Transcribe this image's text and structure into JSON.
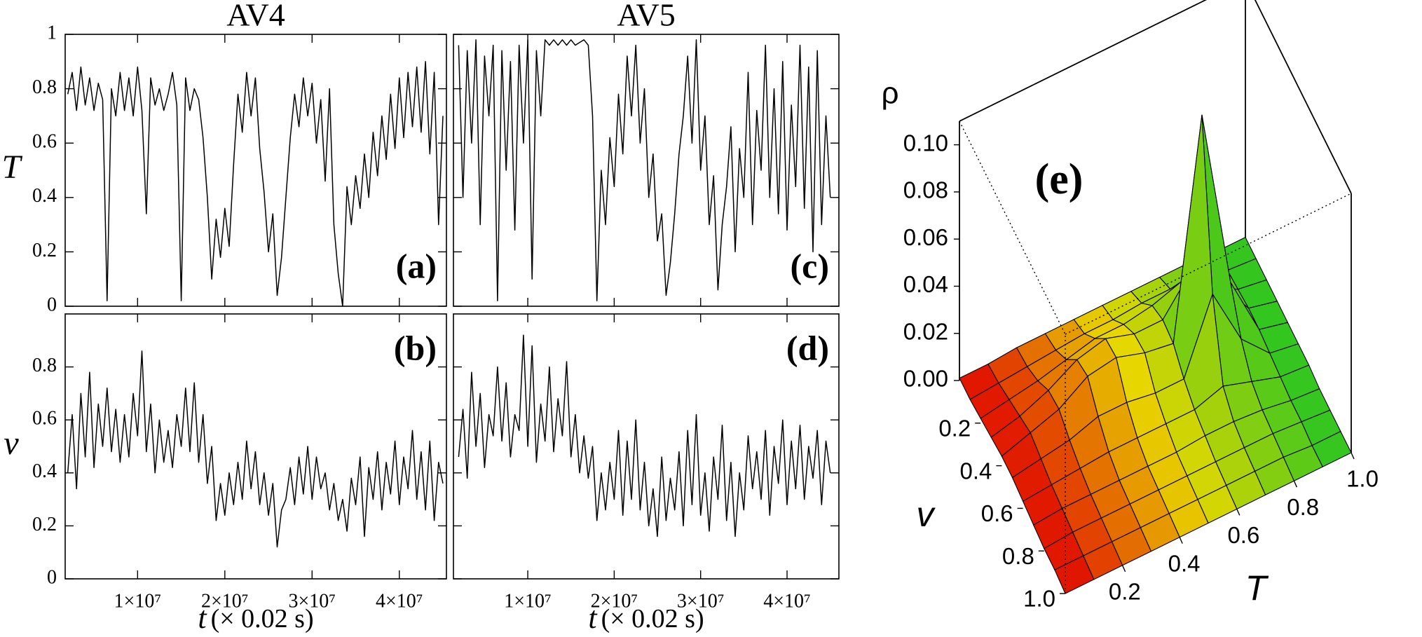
{
  "chart_data": [
    {
      "type": "line",
      "title": "AV4",
      "ylabel": "T",
      "annotation": "(a)",
      "color": "#000000",
      "xlim": [
        1700000,
        45400000
      ],
      "xticks": [
        10000000,
        20000000,
        30000000,
        40000000
      ],
      "ylim": [
        0,
        1
      ],
      "yticks": [
        0,
        0.2,
        0.4,
        0.6,
        0.8,
        1
      ],
      "x": [
        2000000,
        2500000,
        3000000,
        3500000,
        4000000,
        4500000,
        5000000,
        5500000,
        6000000,
        6500000,
        7000000,
        7500000,
        8000000,
        8500000,
        9000000,
        9500000,
        10000000,
        10500000,
        11000000,
        11500000,
        12000000,
        12500000,
        13000000,
        13500000,
        14000000,
        14500000,
        15000000,
        15500000,
        16000000,
        16500000,
        17000000,
        17500000,
        18000000,
        18500000,
        19000000,
        19500000,
        20000000,
        20500000,
        21000000,
        21500000,
        22000000,
        22500000,
        23000000,
        23500000,
        24000000,
        24500000,
        25000000,
        25500000,
        26000000,
        26500000,
        27000000,
        27500000,
        28000000,
        28500000,
        29000000,
        29500000,
        30000000,
        30500000,
        31000000,
        31500000,
        32000000,
        32500000,
        33000000,
        33500000,
        34000000,
        34500000,
        35000000,
        35500000,
        36000000,
        36500000,
        37000000,
        37500000,
        38000000,
        38500000,
        39000000,
        39500000,
        40000000,
        40500000,
        41000000,
        41500000,
        42000000,
        42500000,
        43000000,
        43500000,
        44000000,
        44500000,
        45000000
      ],
      "values": [
        0.78,
        0.86,
        0.72,
        0.88,
        0.74,
        0.84,
        0.72,
        0.82,
        0.76,
        0.02,
        0.8,
        0.7,
        0.86,
        0.72,
        0.84,
        0.7,
        0.88,
        0.72,
        0.34,
        0.84,
        0.74,
        0.8,
        0.72,
        0.78,
        0.86,
        0.74,
        0.02,
        0.84,
        0.72,
        0.8,
        0.76,
        0.62,
        0.4,
        0.1,
        0.32,
        0.18,
        0.36,
        0.22,
        0.52,
        0.78,
        0.64,
        0.86,
        0.7,
        0.84,
        0.58,
        0.42,
        0.2,
        0.34,
        0.04,
        0.18,
        0.4,
        0.62,
        0.78,
        0.66,
        0.84,
        0.7,
        0.82,
        0.6,
        0.76,
        0.46,
        0.8,
        0.3,
        0.12,
        0.0,
        0.44,
        0.3,
        0.48,
        0.36,
        0.56,
        0.4,
        0.64,
        0.48,
        0.7,
        0.54,
        0.78,
        0.58,
        0.84,
        0.62,
        0.86,
        0.66,
        0.88,
        0.64,
        0.9,
        0.56,
        0.86,
        0.3,
        0.7
      ]
    },
    {
      "type": "line",
      "ylabel": "v",
      "annotation": "(b)",
      "color": "#000000",
      "xlabel_var": "t",
      "xlabel_unit": "(× 0.02 s)",
      "xlim": [
        1700000,
        45400000
      ],
      "xticks": [
        {
          "value": 10000000,
          "label": "1×10⁷"
        },
        {
          "value": 20000000,
          "label": "2×10⁷"
        },
        {
          "value": 30000000,
          "label": "3×10⁷"
        },
        {
          "value": 40000000,
          "label": "4×10⁷"
        }
      ],
      "ylim": [
        0,
        1
      ],
      "yticks": [
        0,
        0.2,
        0.4,
        0.6,
        0.8
      ],
      "x": [
        2000000,
        2500000,
        3000000,
        3500000,
        4000000,
        4500000,
        5000000,
        5500000,
        6000000,
        6500000,
        7000000,
        7500000,
        8000000,
        8500000,
        9000000,
        9500000,
        10000000,
        10500000,
        11000000,
        11500000,
        12000000,
        12500000,
        13000000,
        13500000,
        14000000,
        14500000,
        15000000,
        15500000,
        16000000,
        16500000,
        17000000,
        17500000,
        18000000,
        18500000,
        19000000,
        19500000,
        20000000,
        20500000,
        21000000,
        21500000,
        22000000,
        22500000,
        23000000,
        23500000,
        24000000,
        24500000,
        25000000,
        25500000,
        26000000,
        26500000,
        27000000,
        27500000,
        28000000,
        28500000,
        29000000,
        29500000,
        30000000,
        30500000,
        31000000,
        31500000,
        32000000,
        32500000,
        33000000,
        33500000,
        34000000,
        34500000,
        35000000,
        35500000,
        36000000,
        36500000,
        37000000,
        37500000,
        38000000,
        38500000,
        39000000,
        39500000,
        40000000,
        40500000,
        41000000,
        41500000,
        42000000,
        42500000,
        43000000,
        43500000,
        44000000,
        44500000,
        45000000
      ],
      "values": [
        0.4,
        0.62,
        0.34,
        0.7,
        0.46,
        0.78,
        0.42,
        0.66,
        0.5,
        0.72,
        0.48,
        0.64,
        0.44,
        0.62,
        0.46,
        0.7,
        0.54,
        0.86,
        0.48,
        0.66,
        0.4,
        0.6,
        0.44,
        0.56,
        0.42,
        0.62,
        0.5,
        0.72,
        0.48,
        0.74,
        0.44,
        0.62,
        0.36,
        0.5,
        0.22,
        0.36,
        0.24,
        0.4,
        0.28,
        0.44,
        0.3,
        0.52,
        0.34,
        0.48,
        0.28,
        0.4,
        0.24,
        0.36,
        0.12,
        0.26,
        0.3,
        0.42,
        0.28,
        0.46,
        0.32,
        0.5,
        0.3,
        0.46,
        0.34,
        0.4,
        0.26,
        0.36,
        0.22,
        0.3,
        0.18,
        0.38,
        0.28,
        0.46,
        0.16,
        0.42,
        0.3,
        0.48,
        0.26,
        0.44,
        0.32,
        0.52,
        0.28,
        0.46,
        0.34,
        0.56,
        0.3,
        0.48,
        0.26,
        0.52,
        0.22,
        0.44,
        0.36
      ]
    },
    {
      "type": "line",
      "title": "AV5",
      "annotation": "(c)",
      "color": "#000000",
      "xlim": [
        1400000,
        46000000
      ],
      "xticks": [
        10000000,
        20000000,
        30000000,
        40000000
      ],
      "ylim": [
        0,
        1
      ],
      "yticks": [
        0,
        0.2,
        0.4,
        0.6,
        0.8,
        1
      ],
      "x": [
        2000000,
        2500000,
        3000000,
        3500000,
        4000000,
        4500000,
        5000000,
        5500000,
        6000000,
        6500000,
        7000000,
        7500000,
        8000000,
        8500000,
        9000000,
        9500000,
        10000000,
        10500000,
        11000000,
        11500000,
        12000000,
        12500000,
        13000000,
        13500000,
        14000000,
        14500000,
        15000000,
        15500000,
        16000000,
        16500000,
        17000000,
        17500000,
        18000000,
        18500000,
        19000000,
        19500000,
        20000000,
        20500000,
        21000000,
        21500000,
        22000000,
        22500000,
        23000000,
        23500000,
        24000000,
        24500000,
        25000000,
        25500000,
        26000000,
        26500000,
        27000000,
        27500000,
        28000000,
        28500000,
        29000000,
        29500000,
        30000000,
        30500000,
        31000000,
        31500000,
        32000000,
        32500000,
        33000000,
        33500000,
        34000000,
        34500000,
        35000000,
        35500000,
        36000000,
        36500000,
        37000000,
        37500000,
        38000000,
        38500000,
        39000000,
        39500000,
        40000000,
        40500000,
        41000000,
        41500000,
        42000000,
        42500000,
        43000000,
        43500000,
        44000000,
        44500000,
        45000000
      ],
      "values": [
        0.96,
        0.4,
        0.94,
        0.6,
        0.98,
        0.3,
        0.92,
        0.7,
        0.96,
        0.02,
        0.94,
        0.5,
        0.9,
        0.28,
        0.96,
        0.6,
        0.98,
        0.1,
        0.94,
        0.7,
        0.98,
        0.96,
        0.98,
        0.96,
        0.98,
        0.96,
        0.98,
        0.96,
        0.97,
        0.98,
        0.96,
        0.7,
        0.02,
        0.5,
        0.3,
        0.62,
        0.44,
        0.78,
        0.56,
        0.92,
        0.7,
        0.96,
        0.6,
        0.8,
        0.4,
        0.56,
        0.24,
        0.34,
        0.04,
        0.16,
        0.34,
        0.56,
        0.7,
        0.92,
        0.6,
        0.98,
        0.5,
        0.7,
        0.3,
        0.48,
        0.06,
        0.3,
        0.44,
        0.66,
        0.2,
        0.58,
        0.4,
        0.86,
        0.3,
        0.72,
        0.5,
        0.96,
        0.4,
        0.8,
        0.34,
        0.9,
        0.28,
        0.74,
        0.44,
        0.96,
        0.36,
        0.88,
        0.2,
        0.94,
        0.3,
        0.7,
        0.4
      ]
    },
    {
      "type": "line",
      "annotation": "(d)",
      "color": "#000000",
      "xlabel_var": "t",
      "xlabel_unit": "(× 0.02 s)",
      "xlim": [
        1400000,
        46000000
      ],
      "xticks": [
        {
          "value": 10000000,
          "label": "1×10⁷"
        },
        {
          "value": 20000000,
          "label": "2×10⁷"
        },
        {
          "value": 30000000,
          "label": "3×10⁷"
        },
        {
          "value": 40000000,
          "label": "4×10⁷"
        }
      ],
      "ylim": [
        0,
        1
      ],
      "yticks": [
        0,
        0.2,
        0.4,
        0.6,
        0.8
      ],
      "x": [
        2000000,
        2500000,
        3000000,
        3500000,
        4000000,
        4500000,
        5000000,
        5500000,
        6000000,
        6500000,
        7000000,
        7500000,
        8000000,
        8500000,
        9000000,
        9500000,
        10000000,
        10500000,
        11000000,
        11500000,
        12000000,
        12500000,
        13000000,
        13500000,
        14000000,
        14500000,
        15000000,
        15500000,
        16000000,
        16500000,
        17000000,
        17500000,
        18000000,
        18500000,
        19000000,
        19500000,
        20000000,
        20500000,
        21000000,
        21500000,
        22000000,
        22500000,
        23000000,
        23500000,
        24000000,
        24500000,
        25000000,
        25500000,
        26000000,
        26500000,
        27000000,
        27500000,
        28000000,
        28500000,
        29000000,
        29500000,
        30000000,
        30500000,
        31000000,
        31500000,
        32000000,
        32500000,
        33000000,
        33500000,
        34000000,
        34500000,
        35000000,
        35500000,
        36000000,
        36500000,
        37000000,
        37500000,
        38000000,
        38500000,
        39000000,
        39500000,
        40000000,
        40500000,
        41000000,
        41500000,
        42000000,
        42500000,
        43000000,
        43500000,
        44000000,
        44500000,
        45000000
      ],
      "values": [
        0.46,
        0.64,
        0.38,
        0.78,
        0.5,
        0.7,
        0.42,
        0.62,
        0.54,
        0.8,
        0.52,
        0.74,
        0.46,
        0.62,
        0.56,
        0.92,
        0.5,
        0.88,
        0.44,
        0.66,
        0.52,
        0.8,
        0.48,
        0.68,
        0.54,
        0.82,
        0.46,
        0.62,
        0.4,
        0.54,
        0.38,
        0.5,
        0.22,
        0.4,
        0.26,
        0.44,
        0.3,
        0.56,
        0.24,
        0.52,
        0.3,
        0.6,
        0.26,
        0.44,
        0.2,
        0.34,
        0.16,
        0.46,
        0.22,
        0.38,
        0.26,
        0.48,
        0.2,
        0.56,
        0.28,
        0.62,
        0.24,
        0.4,
        0.18,
        0.46,
        0.3,
        0.58,
        0.22,
        0.44,
        0.16,
        0.4,
        0.26,
        0.54,
        0.34,
        0.48,
        0.3,
        0.56,
        0.24,
        0.5,
        0.36,
        0.6,
        0.28,
        0.52,
        0.34,
        0.58,
        0.3,
        0.5,
        0.38,
        0.56,
        0.28,
        0.52,
        0.4
      ]
    },
    {
      "type": "surface",
      "annotation": "(e)",
      "xlabel": "T",
      "ylabel": "v",
      "zlabel": "ρ",
      "colormap": [
        "#e00000",
        "#e8d800",
        "#22c422"
      ],
      "xlim": [
        0,
        1
      ],
      "ylim": [
        0,
        1
      ],
      "zlim": [
        0,
        0.11
      ],
      "xticks": [
        0.2,
        0.4,
        0.6,
        0.8,
        {
          "value": 1,
          "label": "1.0"
        }
      ],
      "yticks": [
        0.2,
        0.4,
        0.6,
        0.8,
        {
          "value": 1,
          "label": "1.0"
        }
      ],
      "zticks": [
        {
          "value": 0,
          "label": "0.00"
        },
        {
          "value": 0.02,
          "label": "0.02"
        },
        {
          "value": 0.04,
          "label": "0.04"
        },
        {
          "value": 0.06,
          "label": "0.06"
        },
        {
          "value": 0.08,
          "label": "0.08"
        },
        {
          "value": 0.1,
          "label": "0.10"
        }
      ],
      "x": [
        0,
        0.1,
        0.2,
        0.3,
        0.4,
        0.5,
        0.6,
        0.7,
        0.8,
        0.9,
        1
      ],
      "y": [
        0,
        0.1,
        0.2,
        0.3,
        0.4,
        0.5,
        0.6,
        0.7,
        0.8,
        0.9,
        1
      ],
      "z": [
        [
          0.001,
          0.001,
          0.002,
          0.002,
          0.002,
          0.002,
          0.002,
          0.002,
          0.002,
          0.001,
          0.001
        ],
        [
          0.001,
          0.002,
          0.003,
          0.004,
          0.005,
          0.005,
          0.006,
          0.006,
          0.004,
          0.002,
          0.001
        ],
        [
          0.002,
          0.004,
          0.006,
          0.009,
          0.012,
          0.012,
          0.014,
          0.018,
          0.01,
          0.003,
          0.001
        ],
        [
          0.003,
          0.006,
          0.011,
          0.018,
          0.021,
          0.017,
          0.017,
          0.032,
          0.02,
          0.004,
          0.001
        ],
        [
          0.004,
          0.008,
          0.012,
          0.02,
          0.022,
          0.018,
          0.016,
          0.107,
          0.03,
          0.004,
          0.001
        ],
        [
          0.004,
          0.006,
          0.008,
          0.012,
          0.012,
          0.01,
          0.01,
          0.04,
          0.015,
          0.003,
          0.001
        ],
        [
          0.003,
          0.004,
          0.005,
          0.006,
          0.006,
          0.006,
          0.006,
          0.01,
          0.006,
          0.002,
          0.001
        ],
        [
          0.002,
          0.003,
          0.003,
          0.003,
          0.003,
          0.003,
          0.004,
          0.004,
          0.003,
          0.001,
          0
        ],
        [
          0.001,
          0.002,
          0.002,
          0.002,
          0.002,
          0.002,
          0.002,
          0.002,
          0.002,
          0.001,
          0
        ],
        [
          0.001,
          0.001,
          0.001,
          0.001,
          0.001,
          0.001,
          0.001,
          0.001,
          0.001,
          0,
          0
        ],
        [
          0,
          0,
          0,
          0,
          0,
          0,
          0,
          0,
          0,
          0,
          0
        ]
      ]
    }
  ]
}
